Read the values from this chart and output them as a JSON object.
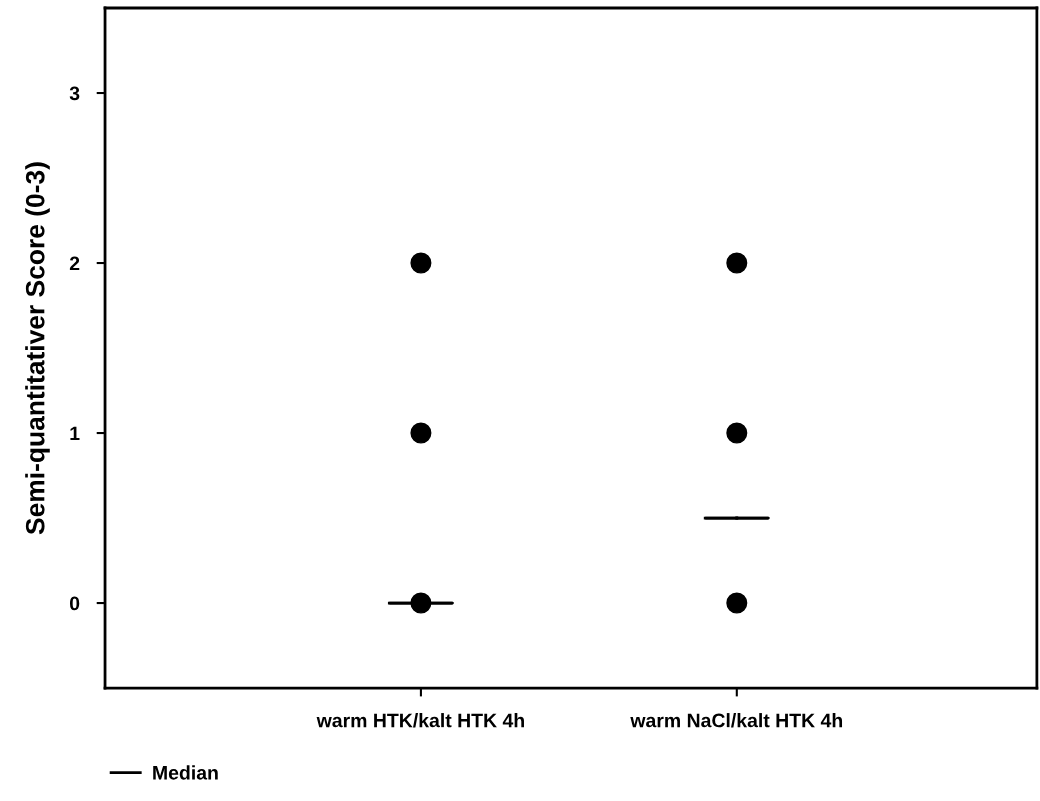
{
  "chart_data": {
    "type": "scatter",
    "ylabel": "Semi-quantitativer Score (0-3)",
    "categories": [
      "warm HTK/kalt HTK 4h",
      "warm NaCl/kalt HTK 4h"
    ],
    "ylim": [
      -0.5,
      3.5
    ],
    "yticks": [
      0,
      1,
      2,
      3
    ],
    "grid": false,
    "legend": "bottom left",
    "series": [
      {
        "marker": "circle",
        "color": "#000000",
        "x": [
          "warm HTK/kalt HTK 4h",
          "warm HTK/kalt HTK 4h",
          "warm HTK/kalt HTK 4h",
          "warm NaCl/kalt HTK 4h",
          "warm NaCl/kalt HTK 4h",
          "warm NaCl/kalt HTK 4h"
        ],
        "values": [
          2,
          1,
          0,
          2,
          1,
          0
        ]
      },
      {
        "name": "Median",
        "type": "box",
        "color": "#000000",
        "boxes": [
          {
            "low": 0,
            "q1": 0,
            "median": 0,
            "q3": 0,
            "high": 0
          },
          {
            "low": 0.5,
            "q1": 0.5,
            "median": 0.5,
            "q3": 0.5,
            "high": 0.5
          }
        ]
      }
    ]
  }
}
